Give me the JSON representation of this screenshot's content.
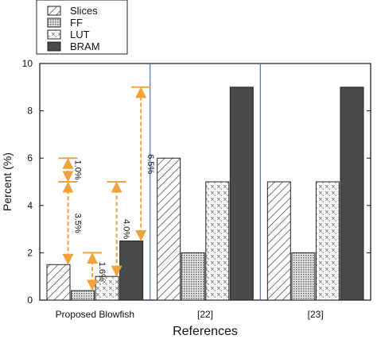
{
  "chart_data": {
    "type": "bar",
    "categories": [
      "Proposed Blowfish",
      "[22]",
      "[23]"
    ],
    "series": [
      {
        "name": "Slices",
        "values": [
          1.5,
          6,
          5
        ]
      },
      {
        "name": "FF",
        "values": [
          0.4,
          2,
          2
        ]
      },
      {
        "name": "LUT",
        "values": [
          1,
          5,
          5
        ]
      },
      {
        "name": "BRAM",
        "values": [
          2.5,
          9,
          9
        ]
      }
    ],
    "xlabel": "References",
    "ylabel": "Percent (%)",
    "ylim": [
      0,
      10
    ],
    "yticks": [
      0,
      2,
      4,
      6,
      8,
      10
    ],
    "legend_position": "top-left",
    "grid": false,
    "annotations": [
      {
        "label": "1.0%",
        "series": "Slices",
        "from": 5,
        "to": 6
      },
      {
        "label": "3.5%",
        "series": "Slices",
        "from": 1.5,
        "to": 5
      },
      {
        "label": "1.6%",
        "series": "FF",
        "from": 0.4,
        "to": 2
      },
      {
        "label": "4.0%",
        "series": "LUT",
        "from": 1,
        "to": 5
      },
      {
        "label": "6.5%",
        "series": "BRAM",
        "from": 2.5,
        "to": 9
      }
    ],
    "colors": {
      "axis": "#111111",
      "divider": "#4f6fc8",
      "arrow": "#f0a23c",
      "bram": "#4a4a4a",
      "bar_stroke": "#222222"
    }
  }
}
